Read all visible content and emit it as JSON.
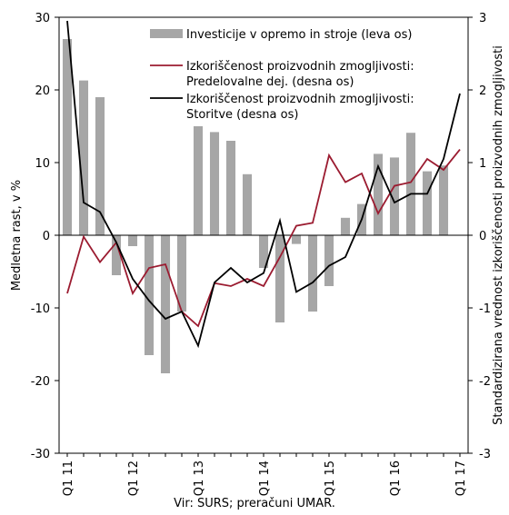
{
  "chart_data": {
    "type": "bar-line",
    "y_label": "Medletna rast, v %",
    "y2_label": "Standardizirana vrednost izkoriščenosti proizvodnih zmogljivosti",
    "source": "Vir: SURS; preračuni UMAR.",
    "categories": [
      "Q1 11",
      null,
      null,
      null,
      "Q1 12",
      null,
      null,
      null,
      "Q1 13",
      null,
      null,
      null,
      "Q1 14",
      null,
      null,
      null,
      "Q1 15",
      null,
      null,
      null,
      "Q1 16",
      null,
      null,
      null,
      "Q1 17"
    ],
    "ylim": [
      -30,
      30
    ],
    "yticks": [
      -30,
      -20,
      -10,
      0,
      10,
      20,
      30
    ],
    "y2lim": [
      -3,
      3
    ],
    "y2ticks": [
      -3,
      -2,
      -1,
      0,
      1,
      2,
      3
    ],
    "series": [
      {
        "name": "Investicije v opremo in stroje (leva os)",
        "type": "bar",
        "color": "#a6a6a6",
        "values": [
          27,
          21.3,
          19,
          -5.5,
          -1.5,
          -16.5,
          -19,
          -10.5,
          15,
          14.2,
          13,
          8.4,
          -4.5,
          -12,
          -1.2,
          -10.5,
          -7,
          2.4,
          4.3,
          11.2,
          10.7,
          14.1,
          8.8,
          9.6,
          null
        ]
      },
      {
        "name": "Izkoriščenost proizvodnih zmogljivosti: Predelovalne dej. (desna os)",
        "type": "line",
        "axis": "y2",
        "color": "#9b1b30",
        "values": [
          -0.8,
          -0.02,
          -0.37,
          -0.1,
          -0.8,
          -0.45,
          -0.4,
          -1.05,
          -1.25,
          -0.66,
          -0.7,
          -0.6,
          -0.7,
          -0.3,
          0.13,
          0.17,
          1.1,
          0.73,
          0.85,
          0.3,
          0.68,
          0.73,
          1.05,
          0.9,
          1.18
        ]
      },
      {
        "name": "Izkoriščenost proizvodnih zmogljivosti: Storitve (desna os)",
        "type": "line",
        "axis": "y2",
        "color": "#000000",
        "values": [
          2.95,
          0.45,
          0.32,
          -0.1,
          -0.6,
          -0.9,
          -1.15,
          -1.05,
          -1.52,
          -0.65,
          -0.45,
          -0.65,
          -0.52,
          0.2,
          -0.78,
          -0.65,
          -0.42,
          -0.3,
          0.22,
          0.95,
          0.45,
          0.57,
          0.57,
          1.05,
          1.95
        ]
      }
    ]
  }
}
